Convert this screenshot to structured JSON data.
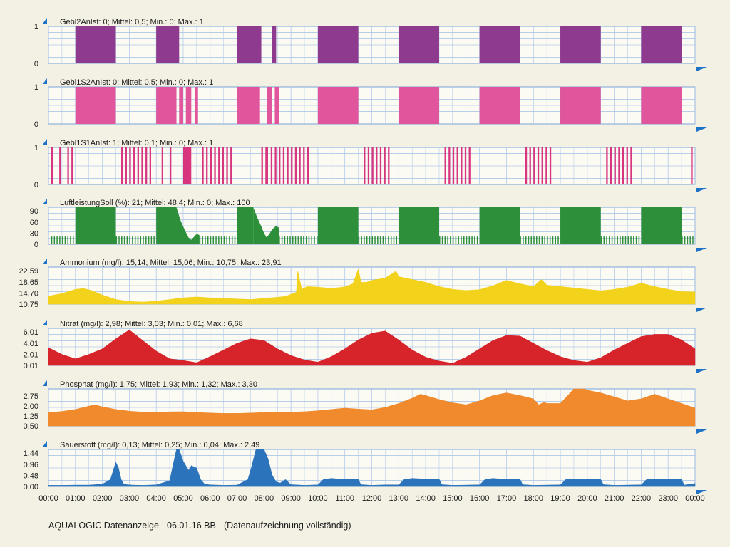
{
  "footer": "AQUALOGIC Datenanzeige - 06.01.16  BB - (Datenaufzeichnung vollständig)",
  "x_ticks": [
    "00:00",
    "01:00",
    "02:00",
    "03:00",
    "04:00",
    "05:00",
    "06:00",
    "07:00",
    "08:00",
    "09:00",
    "10:00",
    "11:00",
    "12:00",
    "13:00",
    "14:00",
    "15:00",
    "16:00",
    "17:00",
    "18:00",
    "19:00",
    "20:00",
    "21:00",
    "22:00",
    "23:00",
    "00:00"
  ],
  "chart_data": [
    {
      "type": "area",
      "title": "Gebl2AnIst:  0;  Mittel: 0,5;  Min.: 0;  Max.: 1",
      "ylim": [
        0,
        1
      ],
      "yticks": [
        {
          "v": 1,
          "label": "1"
        },
        {
          "v": 0,
          "label": "0"
        }
      ],
      "color": "#8e3a8e",
      "x_unit": "hours",
      "segments": [
        [
          1.0,
          2.5,
          1
        ],
        [
          4.0,
          4.85,
          1
        ],
        [
          7.0,
          7.9,
          1
        ],
        [
          8.3,
          8.45,
          1
        ],
        [
          10.0,
          11.5,
          1
        ],
        [
          13.0,
          14.5,
          1
        ],
        [
          16.0,
          17.5,
          1
        ],
        [
          19.0,
          20.5,
          1
        ],
        [
          22.0,
          23.5,
          1
        ]
      ]
    },
    {
      "type": "area",
      "title": "Gebl1S2AnIst:  0;  Mittel: 0,5;  Min.: 0;  Max.: 1",
      "ylim": [
        0,
        1
      ],
      "yticks": [
        {
          "v": 1,
          "label": "1"
        },
        {
          "v": 0,
          "label": "0"
        }
      ],
      "color": "#e0559c",
      "x_unit": "hours",
      "segments": [
        [
          1.0,
          2.5,
          1
        ],
        [
          4.0,
          4.75,
          1
        ],
        [
          4.85,
          5.0,
          1
        ],
        [
          5.1,
          5.3,
          1
        ],
        [
          5.45,
          5.55,
          1
        ],
        [
          7.0,
          7.85,
          1
        ],
        [
          8.1,
          8.3,
          1
        ],
        [
          8.4,
          8.55,
          1
        ],
        [
          10.0,
          11.5,
          1
        ],
        [
          13.0,
          14.5,
          1
        ],
        [
          16.0,
          17.5,
          1
        ],
        [
          19.0,
          20.5,
          1
        ],
        [
          22.0,
          23.5,
          1
        ]
      ]
    },
    {
      "type": "area",
      "title": "Gebl1S1AnIst:  1;  Mittel: 0,1;  Min.: 0;  Max.: 1",
      "ylim": [
        0,
        1
      ],
      "yticks": [
        {
          "v": 1,
          "label": "1"
        },
        {
          "v": 0,
          "label": "0"
        }
      ],
      "color": "#d8357f",
      "x_unit": "hours",
      "segments": [
        [
          0.1,
          0.16,
          1
        ],
        [
          0.4,
          0.46,
          1
        ],
        [
          0.7,
          0.76,
          1
        ],
        [
          0.85,
          0.91,
          1
        ],
        [
          2.7,
          2.76,
          1
        ],
        [
          2.85,
          2.91,
          1
        ],
        [
          3.0,
          3.06,
          1
        ],
        [
          3.15,
          3.21,
          1
        ],
        [
          3.3,
          3.36,
          1
        ],
        [
          3.45,
          3.51,
          1
        ],
        [
          3.6,
          3.66,
          1
        ],
        [
          3.75,
          3.81,
          1
        ],
        [
          4.2,
          4.26,
          1
        ],
        [
          4.5,
          4.56,
          1
        ],
        [
          5.0,
          5.3,
          1
        ],
        [
          5.7,
          5.76,
          1
        ],
        [
          5.85,
          5.91,
          1
        ],
        [
          6.0,
          6.06,
          1
        ],
        [
          6.15,
          6.21,
          1
        ],
        [
          6.3,
          6.36,
          1
        ],
        [
          6.45,
          6.51,
          1
        ],
        [
          6.6,
          6.66,
          1
        ],
        [
          6.75,
          6.81,
          1
        ],
        [
          7.9,
          7.96,
          1
        ],
        [
          8.05,
          8.15,
          1
        ],
        [
          8.25,
          8.31,
          1
        ],
        [
          8.4,
          8.46,
          1
        ],
        [
          8.55,
          8.61,
          1
        ],
        [
          8.7,
          8.76,
          1
        ],
        [
          8.85,
          8.91,
          1
        ],
        [
          9.0,
          9.06,
          1
        ],
        [
          9.15,
          9.21,
          1
        ],
        [
          9.3,
          9.36,
          1
        ],
        [
          9.45,
          9.51,
          1
        ],
        [
          9.6,
          9.66,
          1
        ],
        [
          11.7,
          11.76,
          1
        ],
        [
          11.85,
          11.91,
          1
        ],
        [
          12.0,
          12.06,
          1
        ],
        [
          12.15,
          12.21,
          1
        ],
        [
          12.3,
          12.36,
          1
        ],
        [
          12.45,
          12.51,
          1
        ],
        [
          12.6,
          12.66,
          1
        ],
        [
          14.7,
          14.76,
          1
        ],
        [
          14.85,
          14.91,
          1
        ],
        [
          15.0,
          15.06,
          1
        ],
        [
          15.15,
          15.21,
          1
        ],
        [
          15.3,
          15.36,
          1
        ],
        [
          15.45,
          15.51,
          1
        ],
        [
          15.6,
          15.66,
          1
        ],
        [
          17.7,
          17.76,
          1
        ],
        [
          17.85,
          17.91,
          1
        ],
        [
          18.0,
          18.06,
          1
        ],
        [
          18.15,
          18.21,
          1
        ],
        [
          18.3,
          18.36,
          1
        ],
        [
          18.45,
          18.51,
          1
        ],
        [
          18.6,
          18.66,
          1
        ],
        [
          20.7,
          20.76,
          1
        ],
        [
          20.85,
          20.91,
          1
        ],
        [
          21.0,
          21.06,
          1
        ],
        [
          21.15,
          21.21,
          1
        ],
        [
          21.3,
          21.36,
          1
        ],
        [
          21.45,
          21.51,
          1
        ],
        [
          21.6,
          21.66,
          1
        ],
        [
          23.85,
          23.91,
          1
        ]
      ]
    },
    {
      "type": "area",
      "title": "LuftleistungSoll (%):  21;  Mittel: 48,4;  Min.: 0;  Max.: 100",
      "ylim": [
        0,
        100
      ],
      "yticks": [
        {
          "v": 90,
          "label": "90"
        },
        {
          "v": 60,
          "label": "60"
        },
        {
          "v": 30,
          "label": "30"
        },
        {
          "v": 0,
          "label": "0"
        }
      ],
      "color": "#2e8f3a",
      "x_unit": "hours",
      "segments": [
        [
          1.0,
          2.5,
          100
        ],
        [
          4.0,
          4.75,
          100
        ],
        [
          7.0,
          7.6,
          100
        ],
        [
          10.0,
          11.5,
          100
        ],
        [
          13.0,
          14.5,
          100
        ],
        [
          16.0,
          17.5,
          100
        ],
        [
          19.0,
          20.5,
          100
        ],
        [
          22.0,
          23.5,
          100
        ]
      ],
      "decay_segments": [
        {
          "x": [
            4.75,
            4.9,
            5.05,
            5.2,
            5.3,
            5.4,
            5.5,
            5.6
          ],
          "y": [
            100,
            65,
            40,
            18,
            12,
            20,
            28,
            25
          ]
        },
        {
          "x": [
            7.6,
            7.75,
            7.9,
            8.0,
            8.1,
            8.2,
            8.3,
            8.45,
            8.55
          ],
          "y": [
            100,
            72,
            48,
            30,
            18,
            28,
            40,
            50,
            45
          ]
        }
      ],
      "pulse_zones": [
        [
          0.1,
          1.0
        ],
        [
          2.5,
          4.0
        ],
        [
          5.6,
          7.0
        ],
        [
          8.55,
          10.0
        ],
        [
          11.5,
          13.0
        ],
        [
          14.5,
          16.0
        ],
        [
          17.5,
          19.0
        ],
        [
          20.5,
          22.0
        ],
        [
          23.5,
          24.0
        ]
      ],
      "pulse_value": 21
    },
    {
      "type": "area",
      "title": "Ammonium (mg/l):  15,14;  Mittel: 15,06;  Min.: 10,75;  Max.: 23,91",
      "ylim": [
        10.75,
        23.91
      ],
      "yticks": [
        {
          "v": 22.59,
          "label": "22,59"
        },
        {
          "v": 18.65,
          "label": "18,65"
        },
        {
          "v": 14.7,
          "label": "14,70"
        },
        {
          "v": 10.75,
          "label": "10,75"
        }
      ],
      "color": "#f2d21a",
      "x_unit": "hours",
      "x": [
        0,
        0.5,
        1,
        1.3,
        1.6,
        2,
        2.5,
        3,
        3.5,
        4,
        4.5,
        5,
        5.5,
        6,
        6.5,
        7,
        7.5,
        8,
        8.5,
        8.8,
        9.2,
        9.25,
        9.4,
        9.6,
        10,
        10.5,
        11,
        11.3,
        11.5,
        11.6,
        11.8,
        12,
        12.5,
        12.9,
        13,
        13.5,
        14,
        14.5,
        15,
        15.5,
        16,
        16.5,
        17,
        17.5,
        18,
        18.3,
        18.5,
        19,
        19.5,
        20,
        20.5,
        21,
        21.5,
        22,
        22.5,
        23,
        23.5,
        24
      ],
      "y": [
        13.6,
        14.5,
        16.0,
        16.3,
        15.6,
        14.0,
        12.4,
        11.7,
        11.5,
        11.8,
        12.4,
        13.0,
        13.3,
        13.0,
        12.8,
        12.6,
        12.4,
        12.8,
        13.2,
        13.5,
        15.0,
        22.5,
        16.0,
        17.0,
        16.8,
        16.3,
        16.9,
        18.0,
        23.2,
        18.5,
        18.5,
        19.2,
        20.0,
        22.5,
        20.5,
        19.5,
        18.5,
        17.0,
        16.0,
        15.6,
        15.9,
        17.3,
        19.2,
        18.0,
        17.0,
        19.5,
        17.5,
        17.0,
        16.5,
        16.0,
        15.5,
        16.0,
        16.8,
        18.2,
        17.0,
        16.0,
        15.2,
        15.1
      ]
    },
    {
      "type": "area",
      "title": "Nitrat (mg/l):  2,98;  Mittel: 3,03;  Min.: 0,01;  Max.: 6,68",
      "ylim": [
        0.01,
        6.68
      ],
      "yticks": [
        {
          "v": 6.01,
          "label": "6,01"
        },
        {
          "v": 4.01,
          "label": "4,01"
        },
        {
          "v": 2.01,
          "label": "2,01"
        },
        {
          "v": 0.01,
          "label": "0,01"
        }
      ],
      "color": "#d6242a",
      "x_unit": "hours",
      "x": [
        0,
        0.5,
        1,
        1.5,
        2,
        2.5,
        3,
        3.5,
        4,
        4.5,
        5,
        5.5,
        6,
        6.5,
        7,
        7.5,
        8,
        8.5,
        9,
        9.5,
        10,
        10.5,
        11,
        11.5,
        12,
        12.5,
        13,
        13.5,
        14,
        14.5,
        15,
        15.5,
        16,
        16.5,
        17,
        17.5,
        18,
        18.5,
        19,
        19.5,
        20,
        20.5,
        21,
        21.5,
        22,
        22.5,
        23,
        23.5,
        24
      ],
      "y": [
        3.2,
        2.0,
        1.2,
        2.0,
        3.0,
        4.8,
        6.4,
        4.5,
        2.6,
        1.2,
        0.9,
        0.5,
        1.6,
        2.8,
        4.0,
        4.8,
        4.5,
        3.0,
        1.8,
        1.0,
        0.6,
        1.6,
        3.0,
        4.6,
        5.8,
        6.2,
        4.6,
        2.8,
        1.5,
        0.8,
        0.4,
        1.5,
        3.0,
        4.5,
        5.4,
        5.3,
        4.0,
        2.7,
        1.6,
        0.9,
        0.6,
        1.4,
        2.8,
        4.0,
        5.2,
        5.6,
        5.6,
        4.6,
        3.0
      ]
    },
    {
      "type": "area",
      "title": "Phosphat (mg/l):  1,75;  Mittel: 1,93;  Min.: 1,32;  Max.: 3,30",
      "ylim": [
        0.5,
        3.3
      ],
      "yticks": [
        {
          "v": 2.75,
          "label": "2,75"
        },
        {
          "v": 2.0,
          "label": "2,00"
        },
        {
          "v": 1.25,
          "label": "1,25"
        },
        {
          "v": 0.5,
          "label": "0,50"
        }
      ],
      "color": "#f08a2c",
      "x_unit": "hours",
      "x": [
        0,
        0.5,
        1,
        1.5,
        1.7,
        2,
        2.5,
        3,
        3.5,
        4,
        4.5,
        5,
        5.5,
        6,
        6.5,
        7,
        7.5,
        8,
        8.5,
        9,
        9.5,
        10,
        10.5,
        11,
        11.5,
        12,
        12.5,
        13,
        13.5,
        13.8,
        14,
        14.5,
        15,
        15.5,
        16,
        16.5,
        17,
        17.5,
        18,
        18.2,
        18.4,
        18.5,
        19,
        19.5,
        19.9,
        20,
        20.5,
        21,
        21.5,
        22,
        22.5,
        23,
        23.5,
        24
      ],
      "y": [
        1.5,
        1.6,
        1.75,
        2.0,
        2.1,
        1.95,
        1.75,
        1.62,
        1.55,
        1.52,
        1.57,
        1.58,
        1.52,
        1.48,
        1.45,
        1.45,
        1.48,
        1.52,
        1.55,
        1.55,
        1.58,
        1.65,
        1.75,
        1.85,
        1.78,
        1.72,
        1.9,
        2.2,
        2.6,
        2.9,
        2.8,
        2.5,
        2.25,
        2.1,
        2.4,
        2.8,
        3.0,
        2.8,
        2.55,
        2.1,
        2.3,
        2.2,
        2.2,
        3.3,
        3.3,
        3.2,
        3.0,
        2.7,
        2.4,
        2.55,
        2.9,
        2.55,
        2.2,
        1.85
      ]
    },
    {
      "type": "area",
      "title": "Sauerstoff (mg/l):  0,13;  Mittel: 0,25;  Min.: 0,04;  Max.: 2,49",
      "ylim": [
        0.0,
        1.6
      ],
      "yticks": [
        {
          "v": 1.44,
          "label": "1,44"
        },
        {
          "v": 0.96,
          "label": "0,96"
        },
        {
          "v": 0.48,
          "label": "0,48"
        },
        {
          "v": 0.0,
          "label": "0,00"
        }
      ],
      "color": "#2b74bc",
      "x_unit": "hours",
      "x": [
        0,
        0.5,
        1,
        1.5,
        2,
        2.3,
        2.5,
        2.6,
        2.7,
        2.8,
        2.9,
        3.1,
        3.5,
        4,
        4.5,
        4.6,
        4.75,
        4.85,
        5,
        5.2,
        5.3,
        5.5,
        5.65,
        5.8,
        6,
        6.5,
        7,
        7.4,
        7.55,
        7.7,
        7.8,
        8,
        8.15,
        8.3,
        8.45,
        8.6,
        8.8,
        9,
        9.5,
        10,
        10.2,
        10.5,
        11,
        11.5,
        11.6,
        12,
        12.5,
        13,
        13.2,
        13.5,
        14,
        14.5,
        14.6,
        15,
        15.5,
        16,
        16.2,
        16.5,
        17,
        17.5,
        17.6,
        18,
        18.5,
        19,
        19.2,
        19.5,
        20,
        20.5,
        20.6,
        21,
        21.5,
        22,
        22.2,
        22.5,
        23,
        23.5,
        23.6,
        24
      ],
      "y": [
        0.05,
        0.05,
        0.06,
        0.06,
        0.1,
        0.3,
        1.05,
        0.8,
        0.3,
        0.1,
        0.08,
        0.06,
        0.05,
        0.07,
        0.25,
        0.8,
        1.6,
        1.6,
        1.1,
        0.7,
        0.9,
        0.8,
        0.3,
        0.1,
        0.07,
        0.05,
        0.06,
        0.3,
        0.9,
        1.6,
        1.6,
        1.6,
        1.2,
        0.5,
        0.2,
        0.15,
        0.3,
        0.08,
        0.05,
        0.07,
        0.3,
        0.35,
        0.3,
        0.3,
        0.08,
        0.05,
        0.07,
        0.07,
        0.3,
        0.35,
        0.32,
        0.32,
        0.08,
        0.05,
        0.06,
        0.07,
        0.3,
        0.35,
        0.3,
        0.32,
        0.08,
        0.05,
        0.06,
        0.07,
        0.3,
        0.32,
        0.3,
        0.3,
        0.08,
        0.05,
        0.06,
        0.07,
        0.3,
        0.32,
        0.3,
        0.3,
        0.06,
        0.13
      ]
    }
  ]
}
